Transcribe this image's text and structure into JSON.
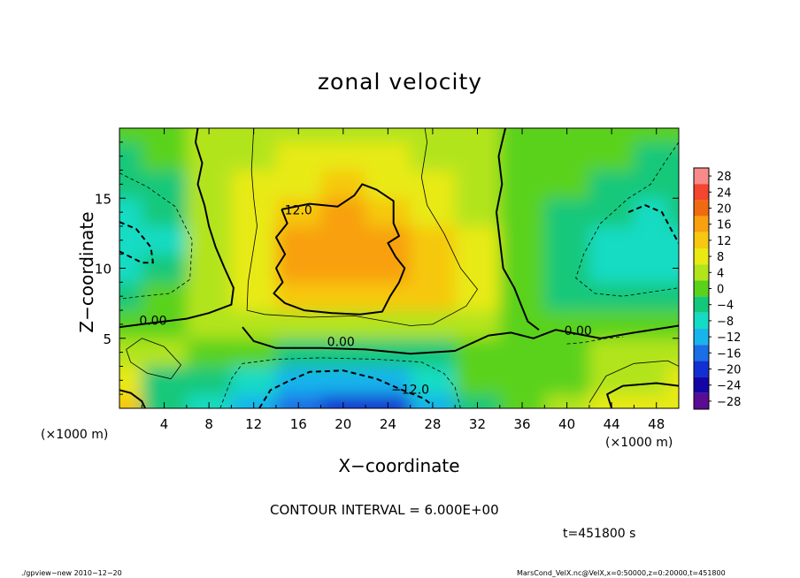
{
  "chart_data": {
    "type": "heatmap",
    "title": "zonal velocity",
    "xlabel": "X−coordinate",
    "ylabel": "Z−coordinate",
    "x_unit_label": "(×1000 m)",
    "y_unit_label": "(×1000 m)",
    "xlim": [
      0,
      50
    ],
    "ylim": [
      0,
      20
    ],
    "x_ticks": [
      "4",
      "8",
      "12",
      "16",
      "20",
      "24",
      "28",
      "32",
      "36",
      "40",
      "44",
      "48"
    ],
    "y_ticks": [
      "5",
      "10",
      "15"
    ],
    "colorbar_levels": [
      "28",
      "24",
      "20",
      "16",
      "12",
      "8",
      "4",
      "0",
      "−4",
      "−8",
      "−12",
      "−16",
      "−20",
      "−24",
      "−28"
    ],
    "colorbar_colors": [
      "#f98a8a",
      "#f4452e",
      "#f06a10",
      "#f8a010",
      "#f6c810",
      "#e8ea12",
      "#b2e41a",
      "#5ad21c",
      "#12c87a",
      "#14dcc4",
      "#18b4ec",
      "#1a6ee6",
      "#1230d2",
      "#1406a6",
      "#5a0c92"
    ],
    "contour_labels": [
      "12.0",
      "0.00",
      "0.00",
      "−12.0",
      "0.00"
    ],
    "contour_interval_text": "CONTOUR INTERVAL = 6.000E+00",
    "time_text": "t=451800 s",
    "field": {
      "x": [
        0,
        4,
        8,
        12,
        16,
        20,
        24,
        28,
        32,
        36,
        40,
        44,
        48,
        50
      ],
      "z": [
        0,
        2,
        4,
        6,
        8,
        10,
        12,
        14,
        16,
        18,
        20
      ],
      "values": [
        [
          10,
          -3,
          -8,
          -12,
          -18,
          -20,
          -20,
          -12,
          -4,
          0,
          2,
          6,
          8,
          9
        ],
        [
          6,
          -3,
          -4,
          -8,
          -13,
          -14,
          -12,
          -7,
          -2,
          0,
          1,
          4,
          5,
          6
        ],
        [
          3,
          2,
          0,
          -2,
          -4,
          -6,
          -5,
          -3,
          0,
          1,
          1,
          2,
          2,
          3
        ],
        [
          0,
          1,
          2,
          4,
          4,
          4,
          4,
          3,
          2,
          0,
          -1,
          0,
          0,
          1
        ],
        [
          -4,
          -2,
          3,
          8,
          11,
          13,
          13,
          10,
          6,
          0,
          -3,
          -5,
          -5,
          -4
        ],
        [
          -9,
          -6,
          3,
          9,
          14,
          15,
          14,
          11,
          6,
          -2,
          -5,
          -7,
          -8,
          -7
        ],
        [
          -10,
          -7,
          3,
          9,
          14,
          16,
          15,
          11,
          6,
          -2,
          -4,
          -7,
          -10,
          -8
        ],
        [
          -7,
          -5,
          3,
          8,
          13,
          14,
          13,
          9,
          4,
          -1,
          -3,
          -5,
          -9,
          -6
        ],
        [
          -4,
          -3,
          3,
          7,
          9,
          10,
          9,
          6,
          3,
          0,
          -2,
          -3,
          -4,
          -4
        ],
        [
          -3,
          -2,
          3,
          5,
          6,
          6,
          6,
          4,
          2,
          0,
          -1,
          -2,
          -3,
          -3
        ],
        [
          -2,
          -1,
          2,
          4,
          4,
          4,
          4,
          3,
          2,
          0,
          -1,
          -1,
          -2,
          -2
        ]
      ]
    }
  },
  "footer": {
    "left": "./gpview−new  2010−12−20",
    "right": "MarsCond_VelX.nc@VelX,x=0:50000,z=0:20000,t=451800"
  }
}
